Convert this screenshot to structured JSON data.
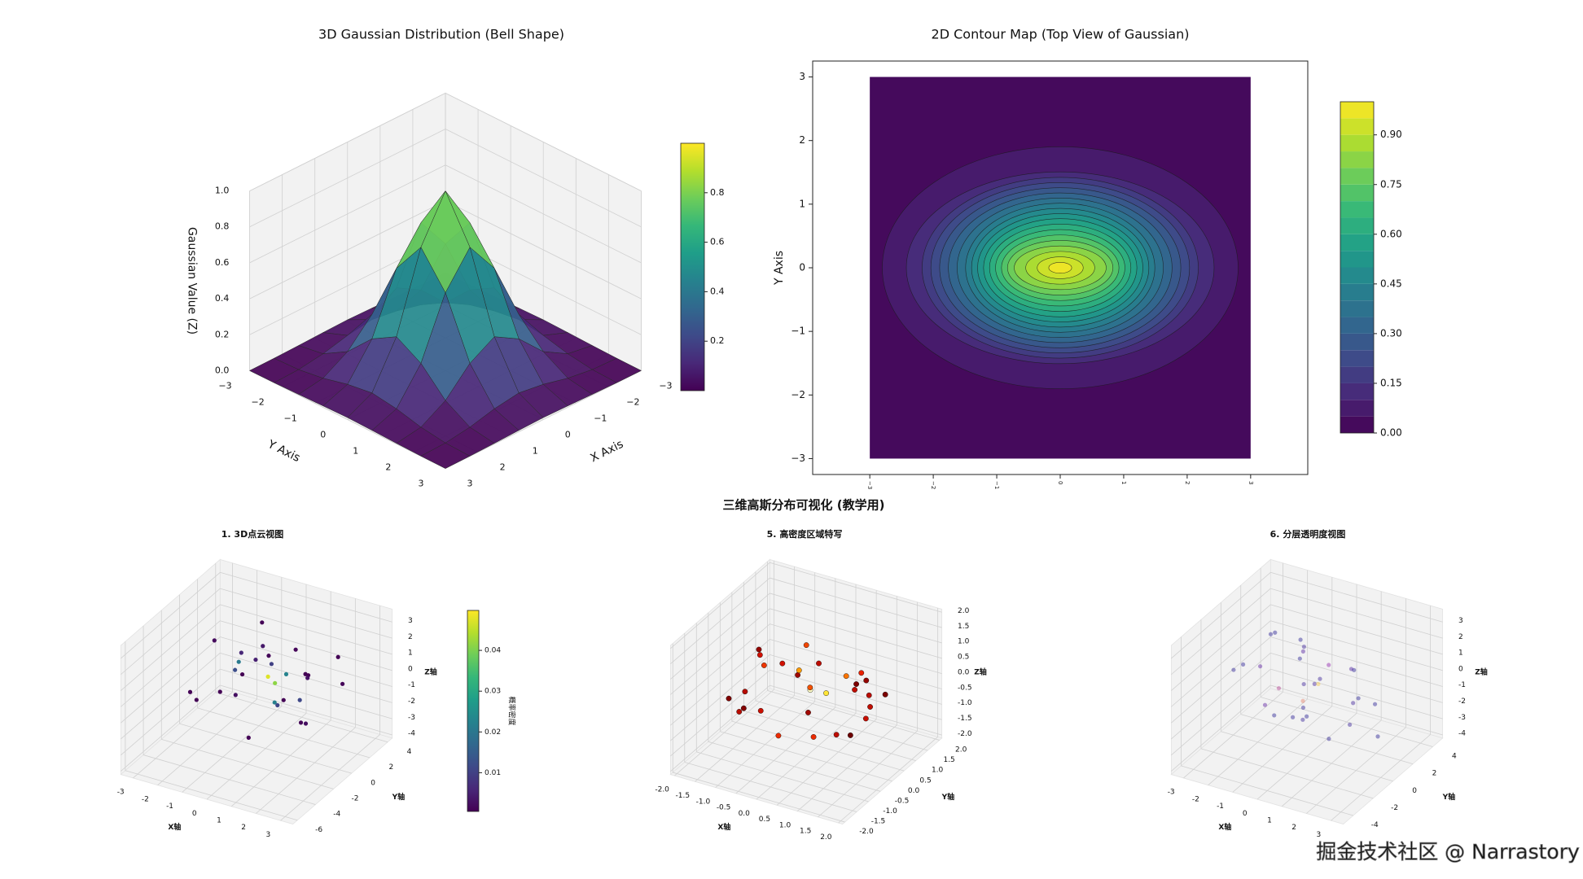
{
  "figure_title": "三维高斯分布可视化 (教学用)",
  "watermark": "掘金技术社区 @ Narrastory",
  "chart_data": [
    {
      "type": "surface3d",
      "title": "3D Gaussian Distribution (Bell Shape)",
      "x_label": "X Axis",
      "y_label": "Y Axis",
      "z_label": "Gaussian Value (Z)",
      "x": [
        -3,
        -2.25,
        -1.5,
        -0.75,
        0,
        0.75,
        1.5,
        2.25,
        3
      ],
      "y": [
        -3,
        -2.25,
        -1.5,
        -0.75,
        0,
        0.75,
        1.5,
        2.25,
        3
      ],
      "z": [
        [
          0.0,
          0.001,
          0.004,
          0.008,
          0.011,
          0.008,
          0.004,
          0.001,
          0.0
        ],
        [
          0.001,
          0.006,
          0.026,
          0.06,
          0.08,
          0.06,
          0.026,
          0.006,
          0.001
        ],
        [
          0.004,
          0.026,
          0.106,
          0.245,
          0.325,
          0.245,
          0.106,
          0.026,
          0.004
        ],
        [
          0.008,
          0.06,
          0.245,
          0.57,
          0.755,
          0.57,
          0.245,
          0.06,
          0.008
        ],
        [
          0.011,
          0.08,
          0.325,
          0.755,
          1.0,
          0.755,
          0.325,
          0.08,
          0.011
        ],
        [
          0.008,
          0.06,
          0.245,
          0.57,
          0.755,
          0.57,
          0.245,
          0.06,
          0.008
        ],
        [
          0.004,
          0.026,
          0.106,
          0.245,
          0.325,
          0.245,
          0.106,
          0.026,
          0.004
        ],
        [
          0.001,
          0.006,
          0.026,
          0.06,
          0.08,
          0.06,
          0.026,
          0.006,
          0.001
        ],
        [
          0.0,
          0.001,
          0.004,
          0.008,
          0.011,
          0.008,
          0.004,
          0.001,
          0.0
        ]
      ],
      "xlim": [
        -3,
        3
      ],
      "ylim": [
        -3,
        3
      ],
      "zlim": [
        0,
        1
      ],
      "xticks": [
        {
          "value": -3,
          "label": "−3"
        },
        {
          "value": -2,
          "label": "−2"
        },
        {
          "value": -1,
          "label": "−1"
        },
        0,
        1,
        2,
        3
      ],
      "yticks": [
        {
          "value": -3,
          "label": "−3"
        },
        {
          "value": -2,
          "label": "−2"
        },
        {
          "value": -1,
          "label": "−1"
        },
        0,
        1,
        2,
        3
      ],
      "zticks": [
        {
          "value": 0,
          "label": "0.0"
        },
        0.2,
        0.4,
        0.6,
        0.8,
        {
          "value": 1,
          "label": "1.0"
        }
      ],
      "colormap": "viridis",
      "colorbar": {
        "clim": [
          0,
          1
        ],
        "ticks": [
          0.2,
          0.4,
          0.6,
          0.8
        ]
      }
    },
    {
      "type": "contour",
      "title": "2D Contour Map (Top View of Gaussian)",
      "y_label": "Y Axis",
      "x": [
        -3,
        -2.25,
        -1.5,
        -0.75,
        0,
        0.75,
        1.5,
        2.25,
        3
      ],
      "y": [
        -3,
        -2.25,
        -1.5,
        -0.75,
        0,
        0.75,
        1.5,
        2.25,
        3
      ],
      "z": [
        [
          0,
          0,
          0,
          0,
          0,
          0,
          0,
          0,
          0
        ],
        [
          0.0,
          0.001,
          0.002,
          0.005,
          0.006,
          0.005,
          0.002,
          0.001,
          0.0
        ],
        [
          0.002,
          0.012,
          0.04,
          0.08,
          0.101,
          0.08,
          0.04,
          0.012,
          0.002
        ],
        [
          0.014,
          0.069,
          0.222,
          0.446,
          0.563,
          0.446,
          0.222,
          0.069,
          0.014
        ],
        [
          0.024,
          0.123,
          0.395,
          0.793,
          1.0,
          0.793,
          0.395,
          0.123,
          0.024
        ],
        [
          0.014,
          0.069,
          0.222,
          0.446,
          0.563,
          0.446,
          0.222,
          0.069,
          0.014
        ],
        [
          0.002,
          0.012,
          0.04,
          0.08,
          0.101,
          0.08,
          0.04,
          0.012,
          0.002
        ],
        [
          0.0,
          0.001,
          0.002,
          0.005,
          0.006,
          0.005,
          0.002,
          0.001,
          0.0
        ],
        [
          0,
          0,
          0,
          0,
          0,
          0,
          0,
          0,
          0
        ]
      ],
      "levels": [
        0,
        0.05,
        0.1,
        0.15,
        0.2,
        0.25,
        0.3,
        0.35,
        0.4,
        0.45,
        0.5,
        0.55,
        0.6,
        0.65,
        0.7,
        0.75,
        0.8,
        0.85,
        0.9,
        0.95,
        1.0
      ],
      "xlim": [
        -3.9,
        3.9
      ],
      "ylim": [
        -3.25,
        3.25
      ],
      "xticks": [
        {
          "value": -3,
          "label": "−3"
        },
        {
          "value": -2,
          "label": "−2"
        },
        {
          "value": -1,
          "label": "−1"
        },
        0,
        1,
        2,
        3
      ],
      "yticks": [
        {
          "value": -3,
          "label": "−3"
        },
        {
          "value": -2,
          "label": "−2"
        },
        {
          "value": -1,
          "label": "−1"
        },
        0,
        1,
        2,
        3
      ],
      "colormap": "viridis",
      "colorbar": {
        "ticks": [
          {
            "value": 0,
            "label": "0.00"
          },
          0.15,
          {
            "value": 0.3,
            "label": "0.30"
          },
          0.45,
          {
            "value": 0.6,
            "label": "0.60"
          },
          0.75,
          {
            "value": 0.9,
            "label": "0.90"
          }
        ]
      }
    },
    {
      "type": "scatter3d",
      "title": "1. 3D点云视图",
      "x_label": "X轴",
      "y_label": "Y轴",
      "z_label": "Z轴",
      "x": [
        0.2,
        -0.8,
        1.1,
        -1.5,
        0.5,
        2.1,
        -2.3,
        0.9,
        -0.3,
        1.6,
        -1.1,
        0.0,
        2.8,
        -2.7,
        0.6,
        -0.6,
        1.3,
        -1.9,
        0.4,
        -0.1,
        1.8,
        -1.2,
        0.7,
        -0.9,
        2.4,
        -2.0,
        0.1,
        1.0,
        -0.4,
        0.3
      ],
      "y": [
        0.5,
        -1.2,
        0.8,
        1.4,
        -0.7,
        -1.8,
        0.6,
        2.2,
        -2.5,
        0.1,
        1.9,
        -0.3,
        0.9,
        -1.0,
        3.1,
        -3.4,
        -0.2,
        2.6,
        1.2,
        -1.6,
        -2.9,
        0.3,
        -0.9,
        2.8,
        1.5,
        -2.2,
        0.0,
        -1.4,
        0.7,
        3.6
      ],
      "z": [
        -0.3,
        0.9,
        -1.1,
        0.4,
        1.6,
        -0.8,
        1.2,
        -0.5,
        0.2,
        -2.0,
        -0.1,
        2.3,
        0.6,
        -1.4,
        -0.9,
        0.7,
        2.6,
        -1.7,
        0.0,
        -2.8,
        1.0,
        0.5,
        -0.6,
        -0.2,
        1.8,
        -1.0,
        0.3,
        -0.4,
        3.1,
        -1.2
      ],
      "xlim": [
        -3.5,
        3.5
      ],
      "ylim": [
        -6.5,
        4.5
      ],
      "zlim": [
        -4.2,
        3.8
      ],
      "xticks": [
        -3,
        -2,
        -1,
        0,
        1,
        2,
        3
      ],
      "yticks": [
        -6,
        -4,
        -2,
        0,
        2,
        4
      ],
      "zticks": [
        -4,
        -3,
        -2,
        -1,
        0,
        1,
        2,
        3
      ],
      "colormap": "viridis",
      "colorbar": {
        "label": "概率密度",
        "clim": [
          0.0005,
          0.0498
        ],
        "ticks": [
          0.01,
          0.02,
          0.03,
          0.04
        ]
      }
    },
    {
      "type": "scatter3d",
      "title": "5. 高密度区域特写",
      "x_label": "X轴",
      "y_label": "Y轴",
      "z_label": "Z轴",
      "x": [
        0.2,
        -0.8,
        1.1,
        -1.5,
        0.5,
        1.6,
        -1.3,
        0.9,
        -0.3,
        1.4,
        -1.1,
        0.0,
        1.7,
        -1.6,
        0.6,
        -0.6,
        1.3,
        -0.9,
        0.4,
        -0.1,
        0.8,
        -1.2,
        0.7,
        -0.5,
        1.0,
        -1.0,
        0.1,
        1.2,
        -0.4,
        0.3
      ],
      "y": [
        0.5,
        -1.2,
        0.8,
        0.6,
        -0.7,
        -0.9,
        0.3,
        1.1,
        -1.4,
        0.1,
        0.9,
        -0.3,
        0.4,
        -0.5,
        1.5,
        -1.6,
        -0.2,
        1.2,
        1.0,
        -1.0,
        -1.3,
        0.3,
        -0.9,
        1.4,
        0.6,
        -1.1,
        0.0,
        -0.8,
        0.7,
        1.6
      ],
      "z": [
        -0.3,
        0.5,
        -0.6,
        0.4,
        0.8,
        -0.2,
        0.5,
        -0.5,
        0.2,
        -0.4,
        -0.1,
        0.9,
        0.3,
        -0.5,
        -0.4,
        0.3,
        0.7,
        -0.6,
        0.0,
        -0.8,
        0.5,
        0.2,
        -0.6,
        -0.2,
        0.6,
        -0.3,
        0.1,
        -0.4,
        0.9,
        -0.7
      ],
      "xlim": [
        -2.1,
        2.1
      ],
      "ylim": [
        -2.1,
        2.1
      ],
      "zlim": [
        -2.1,
        2.1
      ],
      "xticks": [
        {
          "value": -2,
          "label": "-2.0"
        },
        -1.5,
        {
          "value": -1,
          "label": "-1.0"
        },
        -0.5,
        {
          "value": 0,
          "label": "0.0"
        },
        0.5,
        {
          "value": 1,
          "label": "1.0"
        },
        1.5,
        {
          "value": 2,
          "label": "2.0"
        }
      ],
      "yticks": [
        {
          "value": -2,
          "label": "-2.0"
        },
        -1.5,
        {
          "value": -1,
          "label": "-1.0"
        },
        -0.5,
        {
          "value": 0,
          "label": "0.0"
        },
        0.5,
        {
          "value": 1,
          "label": "1.0"
        },
        1.5,
        {
          "value": 2,
          "label": "2.0"
        }
      ],
      "zticks": [
        {
          "value": -2,
          "label": "-2.0"
        },
        -1.5,
        {
          "value": -1,
          "label": "-1.0"
        },
        -0.5,
        {
          "value": 0,
          "label": "0.0"
        },
        0.5,
        {
          "value": 1,
          "label": "1.0"
        },
        1.5,
        {
          "value": 2,
          "label": "2.0"
        }
      ],
      "colormap": "hot"
    },
    {
      "type": "scatter3d",
      "title": "6. 分层透明度视图",
      "x_label": "X轴",
      "y_label": "Y轴",
      "z_label": "Z轴",
      "x": [
        0.3,
        -1.1,
        1.4,
        -0.5,
        2.2,
        -2.0,
        0.8,
        -0.2,
        1.0,
        -1.7,
        0.0,
        2.6,
        -2.5,
        0.5,
        -0.8,
        1.7,
        -1.3,
        0.2,
        -0.4,
        1.2,
        -0.9,
        0.6,
        -2.8,
        2.0,
        -0.1,
        0.9,
        -1.5,
        1.5,
        -0.7,
        0.4
      ],
      "y": [
        0.4,
        -1.5,
        1.0,
        2.0,
        -0.8,
        1.3,
        -2.4,
        0.2,
        2.7,
        -0.5,
        -3.3,
        0.7,
        -1.2,
        3.5,
        1.6,
        -2.0,
        0.0,
        -0.9,
        2.3,
        -3.0,
        0.8,
        -1.8,
        0.5,
        1.9,
        -0.4,
        -2.6,
        3.0,
        0.6,
        -1.1,
        1.2
      ],
      "z": [
        0.2,
        -0.7,
        1.3,
        -1.0,
        0.5,
        1.8,
        -0.3,
        2.4,
        -1.6,
        0.9,
        0.1,
        -2.2,
        0.7,
        -0.5,
        1.1,
        -1.3,
        2.9,
        -0.2,
        -0.8,
        0.4,
        -2.6,
        1.5,
        0.0,
        -1.1,
        3.2,
        0.6,
        -0.4,
        -1.9,
        0.3,
        1.0
      ],
      "xlim": [
        -3.5,
        3.5
      ],
      "ylim": [
        -5,
        5
      ],
      "zlim": [
        -4.2,
        3.8
      ],
      "xticks": [
        -3,
        -2,
        -1,
        0,
        1,
        2,
        3
      ],
      "yticks": [
        -4,
        -2,
        0,
        2,
        4
      ],
      "zticks": [
        -4,
        -3,
        -2,
        -1,
        0,
        1,
        2,
        3
      ],
      "colormap": "plasma",
      "alpha": 0.4
    }
  ]
}
